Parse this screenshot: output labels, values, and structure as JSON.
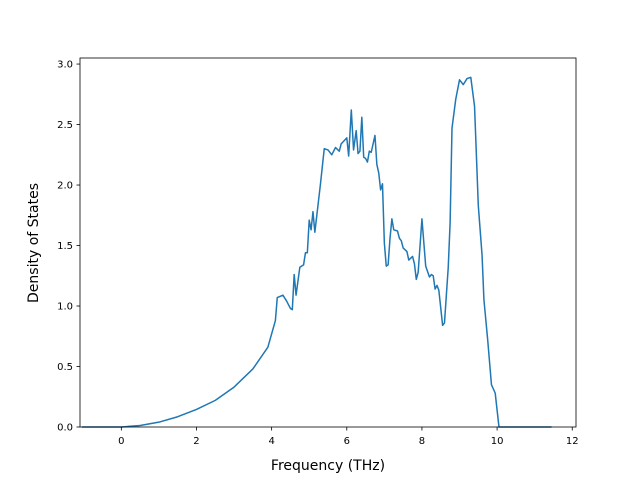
{
  "chart_data": {
    "type": "line",
    "title": "",
    "xlabel": "Frequency (THz)",
    "ylabel": "Density of States",
    "xlim": [
      -1.1,
      12.1
    ],
    "ylim": [
      0.0,
      3.05
    ],
    "xticks": [
      0,
      2,
      4,
      6,
      8,
      10,
      12
    ],
    "xtick_labels": [
      "0",
      "2",
      "4",
      "6",
      "8",
      "10",
      "12"
    ],
    "yticks": [
      0.0,
      0.5,
      1.0,
      1.5,
      2.0,
      2.5,
      3.0
    ],
    "ytick_labels": [
      "0.0",
      "0.5",
      "1.0",
      "1.5",
      "2.0",
      "2.5",
      "3.0"
    ],
    "grid": false,
    "series": [
      {
        "color": "#1f77b4",
        "x": [
          -1.05,
          0.0,
          0.5,
          1.0,
          1.5,
          2.0,
          2.5,
          3.0,
          3.5,
          3.9,
          4.1,
          4.15,
          4.3,
          4.4,
          4.5,
          4.55,
          4.6,
          4.65,
          4.75,
          4.85,
          4.9,
          4.95,
          5.0,
          5.05,
          5.1,
          5.15,
          5.3,
          5.4,
          5.5,
          5.6,
          5.7,
          5.8,
          5.85,
          6.0,
          6.05,
          6.12,
          6.18,
          6.25,
          6.3,
          6.35,
          6.4,
          6.45,
          6.5,
          6.55,
          6.6,
          6.65,
          6.75,
          6.8,
          6.85,
          6.9,
          6.95,
          7.0,
          7.05,
          7.1,
          7.15,
          7.2,
          7.25,
          7.35,
          7.4,
          7.45,
          7.5,
          7.6,
          7.65,
          7.75,
          7.8,
          7.85,
          7.9,
          8.0,
          8.1,
          8.2,
          8.25,
          8.3,
          8.35,
          8.4,
          8.45,
          8.55,
          8.6,
          8.7,
          8.75,
          8.8,
          8.9,
          9.0,
          9.1,
          9.2,
          9.3,
          9.4,
          9.5,
          9.6,
          9.65,
          9.75,
          9.85,
          9.95,
          10.05,
          10.15,
          10.25,
          10.3,
          10.4,
          10.45,
          10.8,
          11.45
        ],
        "y": [
          0.0,
          0.0,
          0.012,
          0.04,
          0.085,
          0.145,
          0.22,
          0.33,
          0.48,
          0.66,
          0.88,
          1.07,
          1.09,
          1.04,
          0.98,
          0.97,
          1.26,
          1.09,
          1.32,
          1.34,
          1.44,
          1.44,
          1.71,
          1.63,
          1.78,
          1.61,
          2.01,
          2.3,
          2.29,
          2.25,
          2.31,
          2.28,
          2.34,
          2.39,
          2.24,
          2.62,
          2.29,
          2.45,
          2.26,
          2.28,
          2.56,
          2.23,
          2.22,
          2.19,
          2.28,
          2.27,
          2.41,
          2.17,
          2.1,
          1.96,
          2.01,
          1.52,
          1.33,
          1.34,
          1.56,
          1.72,
          1.63,
          1.62,
          1.56,
          1.54,
          1.48,
          1.45,
          1.38,
          1.41,
          1.35,
          1.22,
          1.28,
          1.72,
          1.33,
          1.24,
          1.26,
          1.25,
          1.14,
          1.17,
          1.13,
          0.84,
          0.86,
          1.32,
          1.69,
          2.47,
          2.71,
          2.87,
          2.83,
          2.88,
          2.89,
          2.65,
          1.83,
          1.42,
          1.05,
          0.72,
          0.35,
          0.28,
          0.0,
          0.0,
          0.0,
          0.0,
          0.0,
          0.0,
          0.0,
          0.0
        ]
      }
    ]
  }
}
